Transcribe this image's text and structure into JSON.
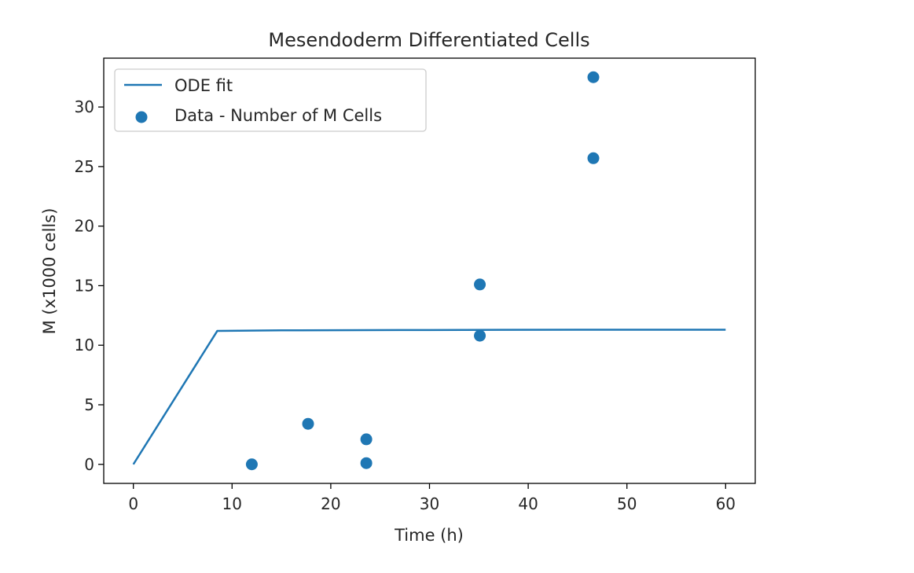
{
  "chart_data": {
    "type": "scatter",
    "title": "Mesendoderm Differentiated Cells",
    "xlabel": "Time (h)",
    "ylabel": "M (x1000 cells)",
    "xlim": [
      -3,
      63
    ],
    "ylim": [
      -1.6,
      34.1
    ],
    "xticks": [
      0,
      10,
      20,
      30,
      40,
      50,
      60
    ],
    "yticks": [
      0,
      5,
      10,
      15,
      20,
      25,
      30
    ],
    "grid": false,
    "legend_position": "upper left",
    "colors": {
      "series": "#1f77b4",
      "axes": "#000000",
      "text": "#262626"
    },
    "series": [
      {
        "name": "ODE fit",
        "kind": "line",
        "x": [
          0,
          8.5,
          15,
          30,
          45,
          60
        ],
        "y": [
          0,
          11.2,
          11.25,
          11.28,
          11.3,
          11.3
        ]
      },
      {
        "name": "Data - Number of M Cells",
        "kind": "scatter",
        "x": [
          12,
          17.7,
          23.6,
          23.6,
          35.1,
          35.1,
          46.6,
          46.6
        ],
        "y": [
          0.0,
          3.4,
          0.1,
          2.1,
          10.8,
          15.1,
          25.7,
          32.5
        ]
      }
    ]
  }
}
